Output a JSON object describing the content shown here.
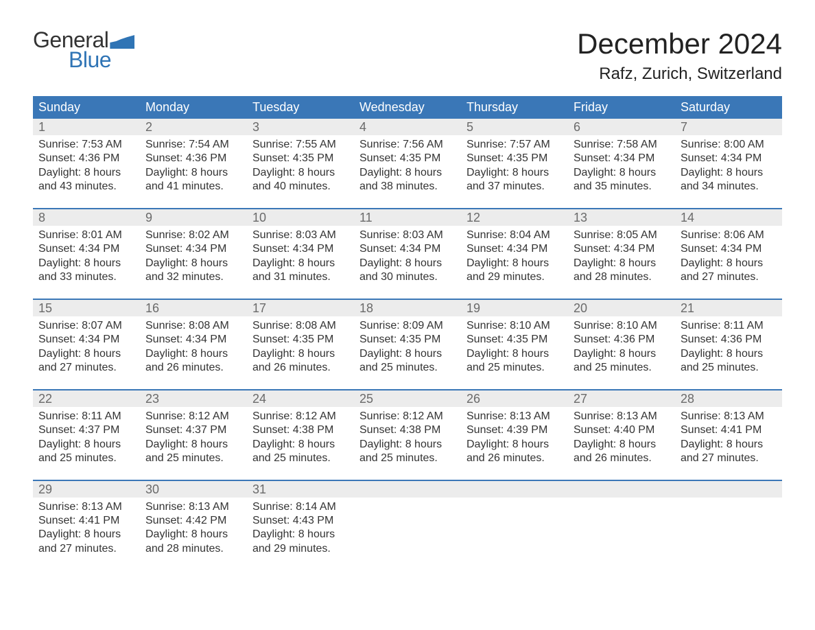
{
  "logo": {
    "word1": "General",
    "word2": "Blue"
  },
  "title": "December 2024",
  "location": "Rafz, Zurich, Switzerland",
  "colors": {
    "header_bg": "#3a77b7",
    "date_bg": "#ececec",
    "accent": "#2f74b5",
    "text": "#333333",
    "muted": "#6a6a6a",
    "background": "#ffffff"
  },
  "fonts": {
    "title_size_pt": 32,
    "location_size_pt": 18,
    "dayname_size_pt": 14,
    "body_size_pt": 12
  },
  "daynames": [
    "Sunday",
    "Monday",
    "Tuesday",
    "Wednesday",
    "Thursday",
    "Friday",
    "Saturday"
  ],
  "weeks": [
    [
      {
        "date": "1",
        "sunrise": "Sunrise: 7:53 AM",
        "sunset": "Sunset: 4:36 PM",
        "day1": "Daylight: 8 hours",
        "day2": "and 43 minutes."
      },
      {
        "date": "2",
        "sunrise": "Sunrise: 7:54 AM",
        "sunset": "Sunset: 4:36 PM",
        "day1": "Daylight: 8 hours",
        "day2": "and 41 minutes."
      },
      {
        "date": "3",
        "sunrise": "Sunrise: 7:55 AM",
        "sunset": "Sunset: 4:35 PM",
        "day1": "Daylight: 8 hours",
        "day2": "and 40 minutes."
      },
      {
        "date": "4",
        "sunrise": "Sunrise: 7:56 AM",
        "sunset": "Sunset: 4:35 PM",
        "day1": "Daylight: 8 hours",
        "day2": "and 38 minutes."
      },
      {
        "date": "5",
        "sunrise": "Sunrise: 7:57 AM",
        "sunset": "Sunset: 4:35 PM",
        "day1": "Daylight: 8 hours",
        "day2": "and 37 minutes."
      },
      {
        "date": "6",
        "sunrise": "Sunrise: 7:58 AM",
        "sunset": "Sunset: 4:34 PM",
        "day1": "Daylight: 8 hours",
        "day2": "and 35 minutes."
      },
      {
        "date": "7",
        "sunrise": "Sunrise: 8:00 AM",
        "sunset": "Sunset: 4:34 PM",
        "day1": "Daylight: 8 hours",
        "day2": "and 34 minutes."
      }
    ],
    [
      {
        "date": "8",
        "sunrise": "Sunrise: 8:01 AM",
        "sunset": "Sunset: 4:34 PM",
        "day1": "Daylight: 8 hours",
        "day2": "and 33 minutes."
      },
      {
        "date": "9",
        "sunrise": "Sunrise: 8:02 AM",
        "sunset": "Sunset: 4:34 PM",
        "day1": "Daylight: 8 hours",
        "day2": "and 32 minutes."
      },
      {
        "date": "10",
        "sunrise": "Sunrise: 8:03 AM",
        "sunset": "Sunset: 4:34 PM",
        "day1": "Daylight: 8 hours",
        "day2": "and 31 minutes."
      },
      {
        "date": "11",
        "sunrise": "Sunrise: 8:03 AM",
        "sunset": "Sunset: 4:34 PM",
        "day1": "Daylight: 8 hours",
        "day2": "and 30 minutes."
      },
      {
        "date": "12",
        "sunrise": "Sunrise: 8:04 AM",
        "sunset": "Sunset: 4:34 PM",
        "day1": "Daylight: 8 hours",
        "day2": "and 29 minutes."
      },
      {
        "date": "13",
        "sunrise": "Sunrise: 8:05 AM",
        "sunset": "Sunset: 4:34 PM",
        "day1": "Daylight: 8 hours",
        "day2": "and 28 minutes."
      },
      {
        "date": "14",
        "sunrise": "Sunrise: 8:06 AM",
        "sunset": "Sunset: 4:34 PM",
        "day1": "Daylight: 8 hours",
        "day2": "and 27 minutes."
      }
    ],
    [
      {
        "date": "15",
        "sunrise": "Sunrise: 8:07 AM",
        "sunset": "Sunset: 4:34 PM",
        "day1": "Daylight: 8 hours",
        "day2": "and 27 minutes."
      },
      {
        "date": "16",
        "sunrise": "Sunrise: 8:08 AM",
        "sunset": "Sunset: 4:34 PM",
        "day1": "Daylight: 8 hours",
        "day2": "and 26 minutes."
      },
      {
        "date": "17",
        "sunrise": "Sunrise: 8:08 AM",
        "sunset": "Sunset: 4:35 PM",
        "day1": "Daylight: 8 hours",
        "day2": "and 26 minutes."
      },
      {
        "date": "18",
        "sunrise": "Sunrise: 8:09 AM",
        "sunset": "Sunset: 4:35 PM",
        "day1": "Daylight: 8 hours",
        "day2": "and 25 minutes."
      },
      {
        "date": "19",
        "sunrise": "Sunrise: 8:10 AM",
        "sunset": "Sunset: 4:35 PM",
        "day1": "Daylight: 8 hours",
        "day2": "and 25 minutes."
      },
      {
        "date": "20",
        "sunrise": "Sunrise: 8:10 AM",
        "sunset": "Sunset: 4:36 PM",
        "day1": "Daylight: 8 hours",
        "day2": "and 25 minutes."
      },
      {
        "date": "21",
        "sunrise": "Sunrise: 8:11 AM",
        "sunset": "Sunset: 4:36 PM",
        "day1": "Daylight: 8 hours",
        "day2": "and 25 minutes."
      }
    ],
    [
      {
        "date": "22",
        "sunrise": "Sunrise: 8:11 AM",
        "sunset": "Sunset: 4:37 PM",
        "day1": "Daylight: 8 hours",
        "day2": "and 25 minutes."
      },
      {
        "date": "23",
        "sunrise": "Sunrise: 8:12 AM",
        "sunset": "Sunset: 4:37 PM",
        "day1": "Daylight: 8 hours",
        "day2": "and 25 minutes."
      },
      {
        "date": "24",
        "sunrise": "Sunrise: 8:12 AM",
        "sunset": "Sunset: 4:38 PM",
        "day1": "Daylight: 8 hours",
        "day2": "and 25 minutes."
      },
      {
        "date": "25",
        "sunrise": "Sunrise: 8:12 AM",
        "sunset": "Sunset: 4:38 PM",
        "day1": "Daylight: 8 hours",
        "day2": "and 25 minutes."
      },
      {
        "date": "26",
        "sunrise": "Sunrise: 8:13 AM",
        "sunset": "Sunset: 4:39 PM",
        "day1": "Daylight: 8 hours",
        "day2": "and 26 minutes."
      },
      {
        "date": "27",
        "sunrise": "Sunrise: 8:13 AM",
        "sunset": "Sunset: 4:40 PM",
        "day1": "Daylight: 8 hours",
        "day2": "and 26 minutes."
      },
      {
        "date": "28",
        "sunrise": "Sunrise: 8:13 AM",
        "sunset": "Sunset: 4:41 PM",
        "day1": "Daylight: 8 hours",
        "day2": "and 27 minutes."
      }
    ],
    [
      {
        "date": "29",
        "sunrise": "Sunrise: 8:13 AM",
        "sunset": "Sunset: 4:41 PM",
        "day1": "Daylight: 8 hours",
        "day2": "and 27 minutes."
      },
      {
        "date": "30",
        "sunrise": "Sunrise: 8:13 AM",
        "sunset": "Sunset: 4:42 PM",
        "day1": "Daylight: 8 hours",
        "day2": "and 28 minutes."
      },
      {
        "date": "31",
        "sunrise": "Sunrise: 8:14 AM",
        "sunset": "Sunset: 4:43 PM",
        "day1": "Daylight: 8 hours",
        "day2": "and 29 minutes."
      },
      {
        "date": "",
        "sunrise": "",
        "sunset": "",
        "day1": "",
        "day2": ""
      },
      {
        "date": "",
        "sunrise": "",
        "sunset": "",
        "day1": "",
        "day2": ""
      },
      {
        "date": "",
        "sunrise": "",
        "sunset": "",
        "day1": "",
        "day2": ""
      },
      {
        "date": "",
        "sunrise": "",
        "sunset": "",
        "day1": "",
        "day2": ""
      }
    ]
  ]
}
